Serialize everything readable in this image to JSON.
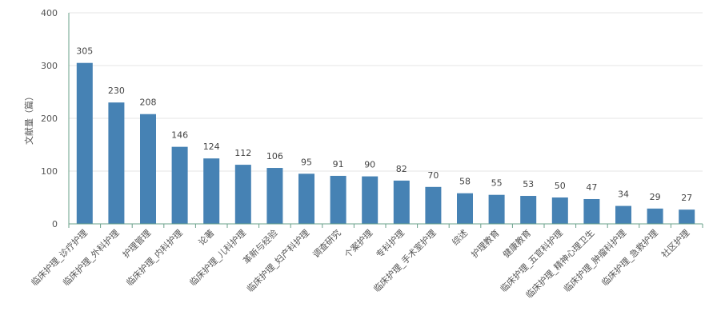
{
  "chart_data": {
    "type": "bar",
    "ylabel": "文献量（篇）",
    "ylim": [
      0,
      400
    ],
    "yticks": [
      0,
      100,
      200,
      300,
      400
    ],
    "grid": true,
    "legend": "none",
    "categories": [
      "临床护理_诊疗护理",
      "临床护理_外科护理",
      "护理管理",
      "临床护理_内科护理",
      "论著",
      "临床护理_儿科护理",
      "革新与经验",
      "临床护理_妇产科护理",
      "调查研究",
      "个案护理",
      "专科护理",
      "临床护理_手术室护理",
      "综述",
      "护理教育",
      "健康教育",
      "临床护理_五官科护理",
      "临床护理_精神心理卫生",
      "临床护理_肿瘤科护理",
      "临床护理_急救护理",
      "社区护理"
    ],
    "values": [
      305,
      230,
      208,
      146,
      124,
      112,
      106,
      95,
      91,
      90,
      82,
      70,
      58,
      55,
      53,
      50,
      47,
      34,
      29,
      27
    ],
    "colors": {
      "bar": "#4682b4",
      "grid": "#e6e6e6",
      "axis": "#6aa08a"
    }
  }
}
